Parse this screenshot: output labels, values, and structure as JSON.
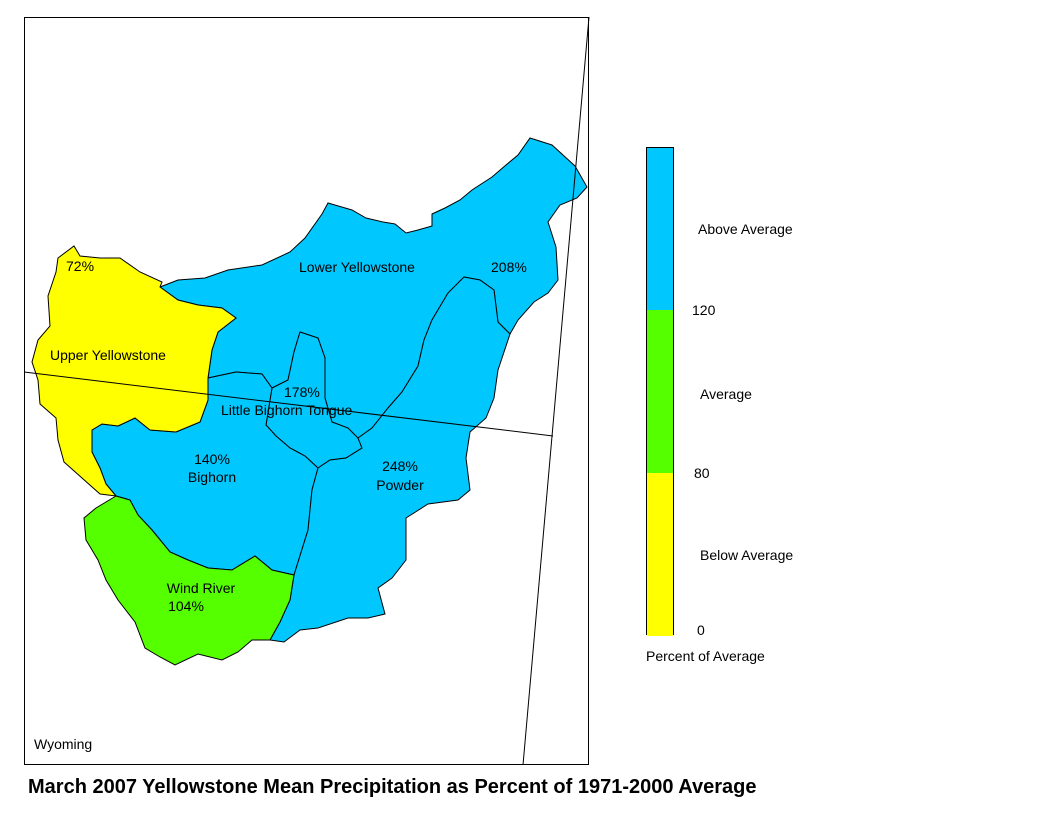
{
  "title": "March 2007 Yellowstone Mean Precipitation as Percent of 1971-2000 Average",
  "state_label": "Wyoming",
  "colors": {
    "above": "#00c8ff",
    "average": "#55ff00",
    "below": "#ffff00",
    "border": "#000000"
  },
  "basins": [
    {
      "name": "Upper Yellowstone",
      "value": "72%",
      "category": "below"
    },
    {
      "name": "Lower Yellowstone",
      "value": "208%",
      "category": "above"
    },
    {
      "name": "Little Bighorn Tongue",
      "value": "178%",
      "category": "above"
    },
    {
      "name": "Bighorn",
      "value": "140%",
      "category": "above"
    },
    {
      "name": "Powder",
      "value": "248%",
      "category": "above"
    },
    {
      "name": "Wind River",
      "value": "104%",
      "category": "average"
    }
  ],
  "legend": {
    "title": "Percent of Average",
    "categories": [
      {
        "label": "Above Average",
        "color": "#00c8ff"
      },
      {
        "label": "Average",
        "color": "#55ff00"
      },
      {
        "label": "Below Average",
        "color": "#ffff00"
      }
    ],
    "ticks": [
      "120",
      "80",
      "0"
    ]
  }
}
